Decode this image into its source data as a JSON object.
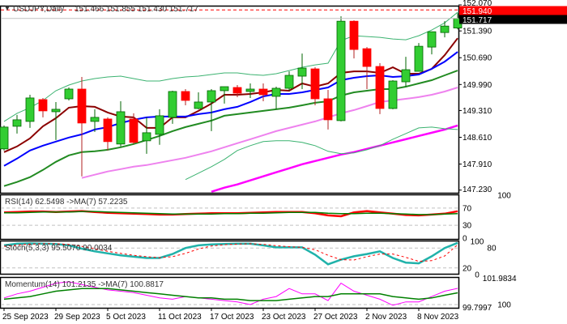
{
  "header": {
    "symbol": "USDJPY,Daily",
    "ohlc": "151.466 151.855 151.430 151.717"
  },
  "price_tags": {
    "ask": "151.940",
    "last": "151.717",
    "ask_value": 151.94,
    "last_value": 151.717
  },
  "colors": {
    "bull": "#32cd32",
    "bear": "#ff0000",
    "ma_fast": "#8b0000",
    "ma_mid": "#0000ff",
    "ma_slow": "#228b22",
    "ma_long": "#ee82ee",
    "ma_xlong": "#ff00ff",
    "bands": "#3cb371",
    "stoch": "#20b2aa"
  },
  "chart_data": [
    {
      "type": "candlestick",
      "title": "USDJPY,Daily",
      "ylim": [
        147.16,
        152.05
      ],
      "ytick_labels": [
        "152.070",
        "151.390",
        "150.690",
        "149.990",
        "149.310",
        "148.610",
        "147.910",
        "147.230"
      ],
      "yticks": [
        152.07,
        151.39,
        150.69,
        149.99,
        149.31,
        148.61,
        147.91,
        147.23
      ],
      "x_labels": [
        {
          "index": 0,
          "text": "25 Sep 2023"
        },
        {
          "index": 4,
          "text": "29 Sep 2023"
        },
        {
          "index": 8,
          "text": "5 Oct 2023"
        },
        {
          "index": 12,
          "text": "11 Oct 2023"
        },
        {
          "index": 16,
          "text": "17 Oct 2023"
        },
        {
          "index": 20,
          "text": "23 Oct 2023"
        },
        {
          "index": 24,
          "text": "27 Oct 2023"
        },
        {
          "index": 28,
          "text": "2 Nov 2023"
        },
        {
          "index": 32,
          "text": "8 Nov 2023"
        }
      ],
      "ohlc": [
        [
          148.307,
          148.919,
          148.265,
          148.877
        ],
        [
          148.898,
          149.194,
          148.708,
          149.067
        ],
        [
          149.025,
          149.722,
          148.856,
          149.638
        ],
        [
          149.595,
          149.638,
          149.131,
          149.3
        ],
        [
          149.278,
          149.532,
          148.539,
          149.342
        ],
        [
          149.616,
          149.912,
          149.574,
          149.87
        ],
        [
          149.87,
          150.187,
          147.589,
          148.983
        ],
        [
          149.025,
          149.342,
          148.75,
          149.131
        ],
        [
          149.088,
          149.131,
          148.265,
          148.497
        ],
        [
          148.434,
          149.553,
          148.37,
          149.278
        ],
        [
          149.088,
          149.236,
          148.434,
          148.476
        ],
        [
          148.518,
          149.131,
          148.18,
          148.729
        ],
        [
          148.687,
          149.342,
          148.413,
          149.173
        ],
        [
          149.131,
          149.828,
          148.962,
          149.807
        ],
        [
          149.807,
          149.87,
          149.447,
          149.574
        ],
        [
          149.363,
          149.785,
          149.342,
          149.532
        ],
        [
          149.532,
          149.87,
          148.772,
          149.828
        ],
        [
          149.828,
          149.933,
          149.49,
          149.933
        ],
        [
          149.912,
          149.975,
          149.659,
          149.764
        ],
        [
          149.807,
          150.017,
          149.638,
          149.87
        ],
        [
          149.87,
          150.017,
          149.553,
          149.722
        ],
        [
          149.68,
          149.933,
          149.342,
          149.891
        ],
        [
          149.891,
          150.334,
          149.828,
          150.229
        ],
        [
          150.208,
          150.799,
          149.87,
          150.419
        ],
        [
          150.398,
          150.44,
          149.447,
          149.616
        ],
        [
          149.616,
          149.849,
          148.814,
          149.067
        ],
        [
          149.046,
          151.772,
          149.025,
          151.644
        ],
        [
          151.644,
          151.665,
          150.672,
          150.905
        ],
        [
          150.926,
          150.968,
          149.87,
          150.461
        ],
        [
          150.461,
          150.546,
          149.215,
          149.363
        ],
        [
          149.363,
          150.102,
          149.342,
          150.081
        ],
        [
          150.06,
          150.714,
          149.933,
          150.377
        ],
        [
          150.334,
          151.074,
          150.334,
          150.989
        ],
        [
          150.968,
          151.369,
          150.778,
          151.369
        ],
        [
          151.348,
          151.644,
          151.222,
          151.517
        ],
        [
          151.466,
          151.855,
          151.43,
          151.717
        ]
      ],
      "series": [
        {
          "name": "ma_fast",
          "color": "#8b0000",
          "width": 2,
          "values": [
            148.222,
            148.37,
            148.582,
            148.898,
            149.11,
            149.384,
            149.426,
            149.405,
            149.257,
            149.152,
            149.131,
            148.856,
            148.856,
            149.131,
            149.131,
            149.3,
            149.49,
            149.722,
            149.722,
            149.743,
            149.785,
            149.849,
            149.828,
            150.017,
            149.933,
            150.017,
            150.292,
            150.334,
            150.334,
            150.292,
            150.44,
            150.271,
            150.271,
            150.398,
            150.757,
            151.2
          ]
        },
        {
          "name": "ma_mid",
          "color": "#0000ff",
          "width": 2,
          "values": [
            147.864,
            148.054,
            148.265,
            148.391,
            148.497,
            148.603,
            148.687,
            148.814,
            148.877,
            148.983,
            149.067,
            149.131,
            149.152,
            149.152,
            149.152,
            149.215,
            149.257,
            149.342,
            149.405,
            149.532,
            149.68,
            149.743,
            149.743,
            149.785,
            149.849,
            149.912,
            150.102,
            150.165,
            150.208,
            150.229,
            150.187,
            150.208,
            150.25,
            150.398,
            150.588,
            150.841
          ]
        },
        {
          "name": "ma_slow",
          "color": "#228b22",
          "width": 2,
          "values": [
            147.336,
            147.441,
            147.568,
            147.758,
            147.969,
            148.138,
            148.222,
            148.243,
            148.285,
            148.349,
            148.434,
            148.539,
            148.645,
            148.772,
            148.877,
            148.962,
            149.046,
            149.173,
            149.215,
            149.257,
            149.3,
            149.342,
            149.384,
            149.447,
            149.511,
            149.553,
            149.701,
            149.785,
            149.828,
            149.87,
            149.87,
            149.933,
            150.017,
            150.102,
            150.229,
            150.355
          ]
        },
        {
          "name": "ma_long",
          "color": "#ee82ee",
          "width": 2,
          "values": [
            null,
            null,
            null,
            null,
            null,
            null,
            147.547,
            147.632,
            147.716,
            147.779,
            147.842,
            147.885,
            147.948,
            148.011,
            148.074,
            148.159,
            148.243,
            148.349,
            148.455,
            148.56,
            148.666,
            148.772,
            148.856,
            148.941,
            149.025,
            149.131,
            149.236,
            149.321,
            149.426,
            149.532,
            149.574,
            149.616,
            149.659,
            149.722,
            149.807,
            149.912
          ]
        },
        {
          "name": "ma_xlong",
          "color": "#ff00ff",
          "width": 2.5,
          "values": [
            null,
            null,
            null,
            null,
            null,
            null,
            null,
            null,
            null,
            null,
            null,
            null,
            null,
            null,
            null,
            null,
            147.188,
            147.293,
            147.377,
            147.483,
            147.589,
            147.695,
            147.8,
            147.906,
            147.99,
            148.074,
            148.159,
            148.222,
            148.307,
            148.391,
            148.476,
            148.56,
            148.645,
            148.729,
            148.814,
            148.919
          ]
        },
        {
          "name": "band_upper",
          "color": "#3cb371",
          "width": 1,
          "values": [
            149.025,
            149.236,
            149.384,
            149.574,
            149.828,
            149.975,
            150.081,
            150.144,
            150.187,
            150.208,
            150.144,
            150.081,
            150.081,
            150.144,
            150.187,
            150.208,
            150.25,
            150.292,
            150.292,
            150.25,
            150.229,
            150.271,
            150.355,
            150.44,
            150.503,
            150.546,
            151.137,
            151.264,
            151.243,
            151.222,
            151.179,
            151.158,
            151.264,
            151.412,
            151.602,
            151.876
          ]
        },
        {
          "name": "band_lower",
          "color": "#3cb371",
          "width": 1,
          "values": [
            null,
            null,
            null,
            null,
            null,
            null,
            null,
            null,
            null,
            null,
            null,
            null,
            null,
            null,
            147.504,
            147.673,
            147.842,
            148.032,
            148.265,
            148.391,
            148.497,
            148.518,
            148.518,
            148.476,
            148.391,
            148.243,
            148.18,
            148.201,
            148.285,
            148.391,
            148.56,
            148.708,
            148.856,
            148.877,
            148.834,
            148.814
          ]
        }
      ]
    },
    {
      "type": "line",
      "title": "RSI(14) 62.5498  ->MA(7) 57.2235",
      "ylim": [
        0,
        100
      ],
      "ytick_labels": [
        "100",
        "70",
        "30",
        "0"
      ],
      "yticks": [
        100,
        70,
        30,
        0
      ],
      "levels": [
        70,
        30
      ],
      "series": [
        {
          "name": "RSI(14)",
          "color": "#ff0000",
          "width": 2.5,
          "values": [
            60,
            61,
            62,
            62,
            61,
            62,
            63,
            61,
            59,
            58,
            57,
            56,
            55,
            55,
            56,
            57,
            58,
            58,
            58,
            59,
            60,
            61,
            61,
            61,
            58,
            53,
            51,
            60,
            63,
            60,
            57,
            54,
            53,
            55,
            57,
            62.5498
          ]
        },
        {
          "name": "MA(7)",
          "color": "#008000",
          "width": 1.5,
          "values": [
            59,
            59,
            60,
            61,
            61,
            61,
            62,
            62,
            61,
            60,
            59,
            58,
            57,
            56,
            56,
            56,
            56,
            57,
            57,
            58,
            58,
            59,
            60,
            60,
            60,
            58,
            57,
            57,
            58,
            58,
            57,
            56,
            55,
            55,
            56,
            57.2235
          ]
        }
      ]
    },
    {
      "type": "line",
      "title": "Stoch(5,3,3) 95.5070 90.0034",
      "ylim": [
        0,
        100
      ],
      "ytick_labels": [
        "100",
        "80",
        "20",
        "0"
      ],
      "yticks": [
        100,
        80,
        20,
        0
      ],
      "levels": [
        80,
        20
      ],
      "series": [
        {
          "name": "main",
          "color": "#20b2aa",
          "width": 2.5,
          "values": [
            88,
            93,
            94,
            93,
            92,
            88,
            78,
            70,
            64,
            58,
            54,
            50,
            50,
            62,
            80,
            88,
            91,
            92,
            93,
            93,
            88,
            82,
            82,
            82,
            60,
            31,
            45,
            55,
            62,
            70,
            50,
            36,
            34,
            55,
            80,
            95.507
          ]
        },
        {
          "name": "signal",
          "color": "#ff0000",
          "width": 1,
          "dash": "3,3",
          "values": [
            85,
            89,
            92,
            93,
            93,
            91,
            85,
            78,
            70,
            64,
            58,
            54,
            51,
            54,
            64,
            77,
            86,
            90,
            92,
            93,
            91,
            87,
            84,
            82,
            75,
            58,
            45,
            44,
            54,
            62,
            62,
            52,
            40,
            42,
            56,
            90.0034
          ]
        }
      ]
    },
    {
      "type": "line",
      "title": "Momentum(14) 101.2135  ->MA(7) 100.8817",
      "ylim": [
        99.7,
        102.06
      ],
      "ytick_labels": [
        "101.9834",
        "99.7997",
        "100"
      ],
      "yticks": [
        101.9834,
        99.7997,
        100
      ],
      "levels": [
        100
      ],
      "series": [
        {
          "name": "Momentum(14)",
          "color": "#ff00ff",
          "width": 1,
          "values": [
            100.5,
            100.8,
            101.0,
            101.3,
            101.6,
            101.7,
            101.5,
            101.3,
            101.1,
            101.0,
            100.9,
            100.7,
            100.5,
            100.4,
            100.6,
            100.5,
            100.4,
            100.3,
            100.2,
            100.0,
            100.4,
            100.6,
            101.2,
            100.8,
            100.8,
            100.3,
            101.6,
            101.0,
            100.7,
            100.4,
            99.95,
            100.2,
            100.2,
            100.6,
            101.0,
            101.2135
          ]
        },
        {
          "name": "MA(7)",
          "color": "#008000",
          "width": 1.5,
          "values": [
            100.4,
            100.5,
            100.6,
            100.8,
            101.0,
            101.1,
            101.2,
            101.2,
            101.2,
            101.1,
            101.0,
            100.9,
            100.8,
            100.7,
            100.6,
            100.5,
            100.5,
            100.4,
            100.4,
            100.3,
            100.3,
            100.3,
            100.4,
            100.5,
            100.6,
            100.6,
            100.8,
            100.8,
            100.8,
            100.8,
            100.6,
            100.5,
            100.4,
            100.5,
            100.7,
            100.8817
          ]
        }
      ]
    }
  ]
}
